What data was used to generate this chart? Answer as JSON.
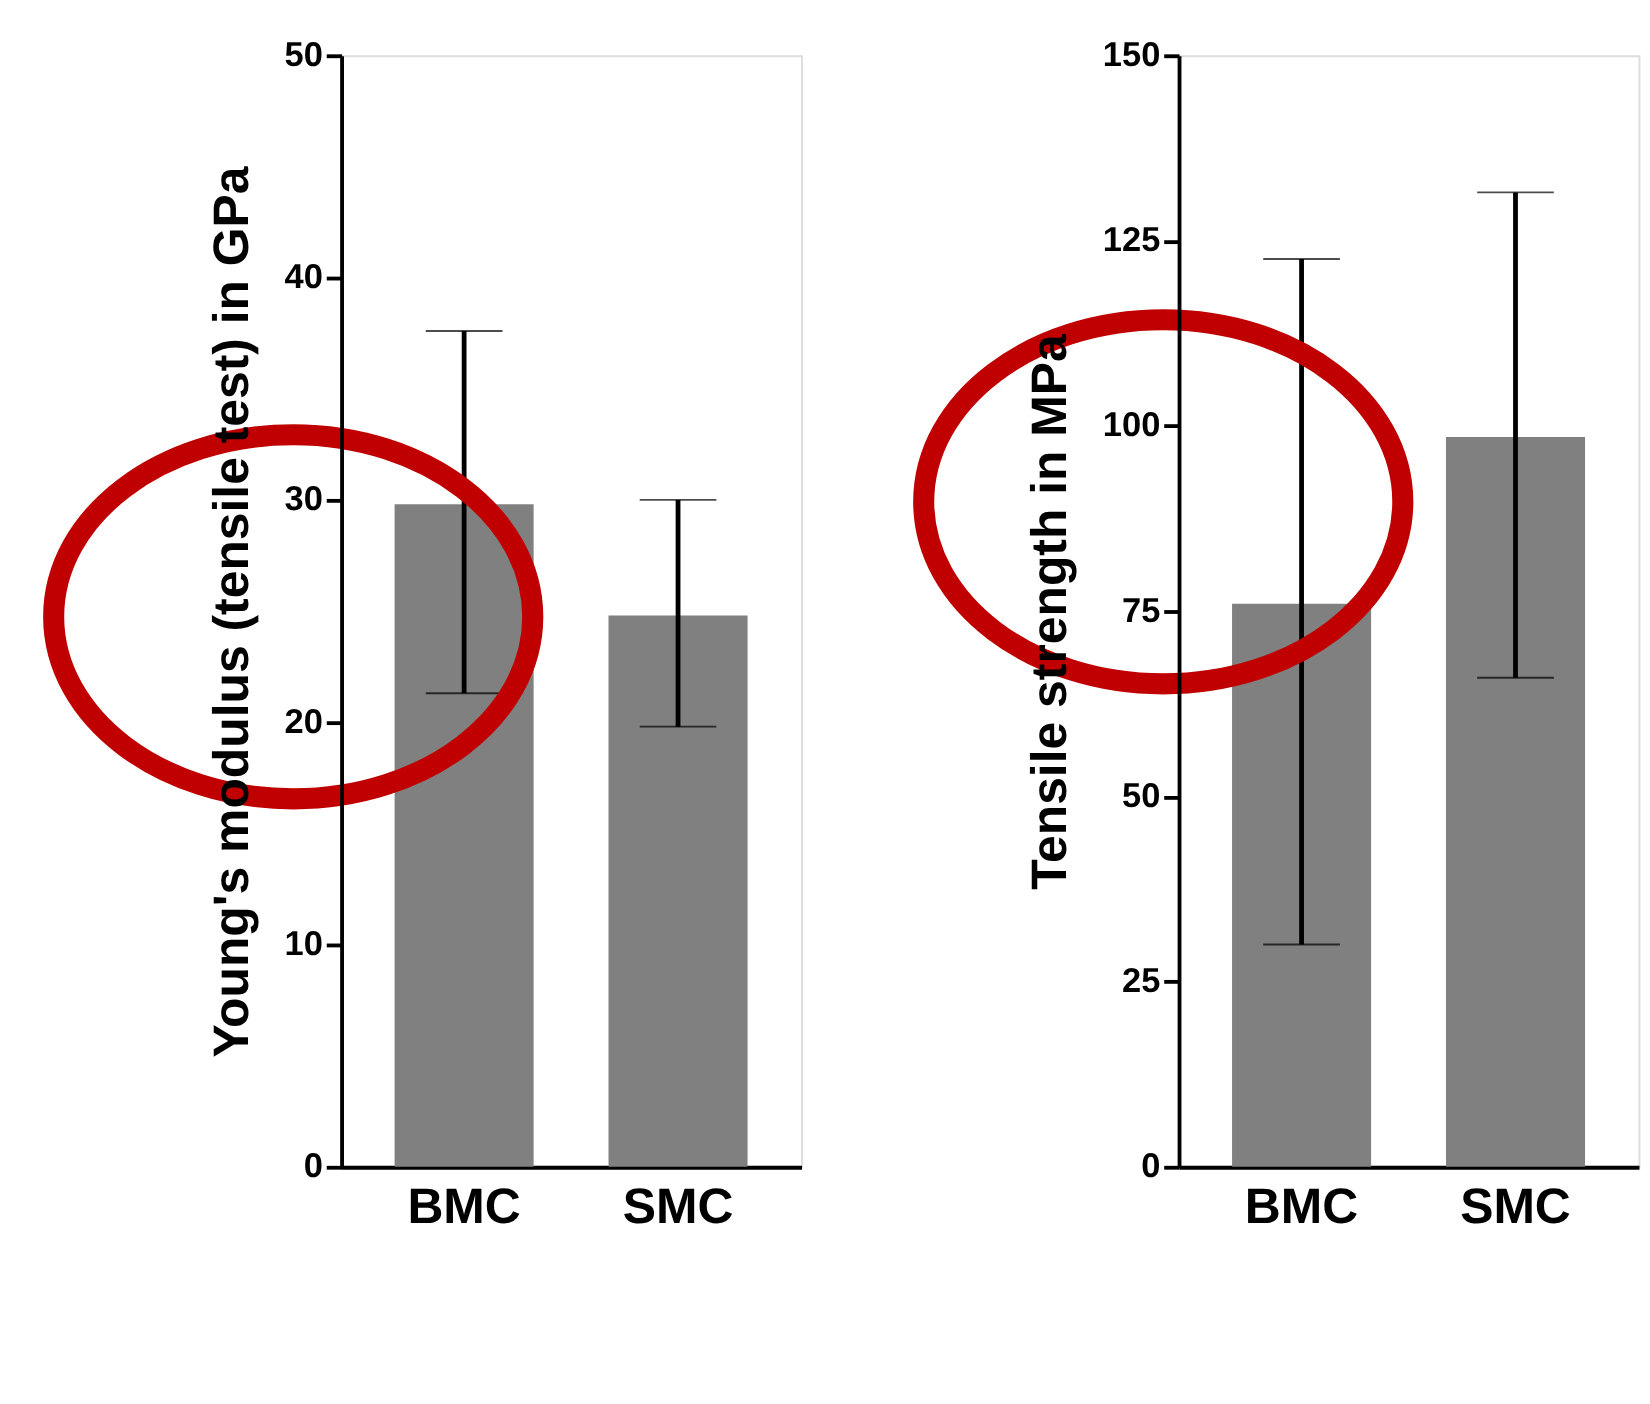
{
  "chart_data": [
    {
      "type": "bar",
      "ylabel": "Young's modulus (tensile test) in GPa",
      "categories": [
        "BMC",
        "SMC"
      ],
      "values": [
        29.8,
        24.8
      ],
      "errors": [
        [
          21.3,
          37.6
        ],
        [
          19.8,
          30.0
        ]
      ],
      "color": "#808080",
      "ylim": [
        0,
        50
      ],
      "yticks": [
        0,
        10,
        20,
        30,
        40,
        50
      ],
      "grid": false
    },
    {
      "type": "bar",
      "ylabel": "Tensile strength in MPa",
      "categories": [
        "BMC",
        "SMC"
      ],
      "values": [
        76,
        98.5
      ],
      "errors": [
        [
          30,
          122.5
        ],
        [
          66,
          131.5
        ]
      ],
      "color": "#808080",
      "ylim": [
        0,
        150
      ],
      "yticks": [
        0,
        25,
        50,
        75,
        100,
        125,
        150
      ],
      "grid": false
    }
  ]
}
